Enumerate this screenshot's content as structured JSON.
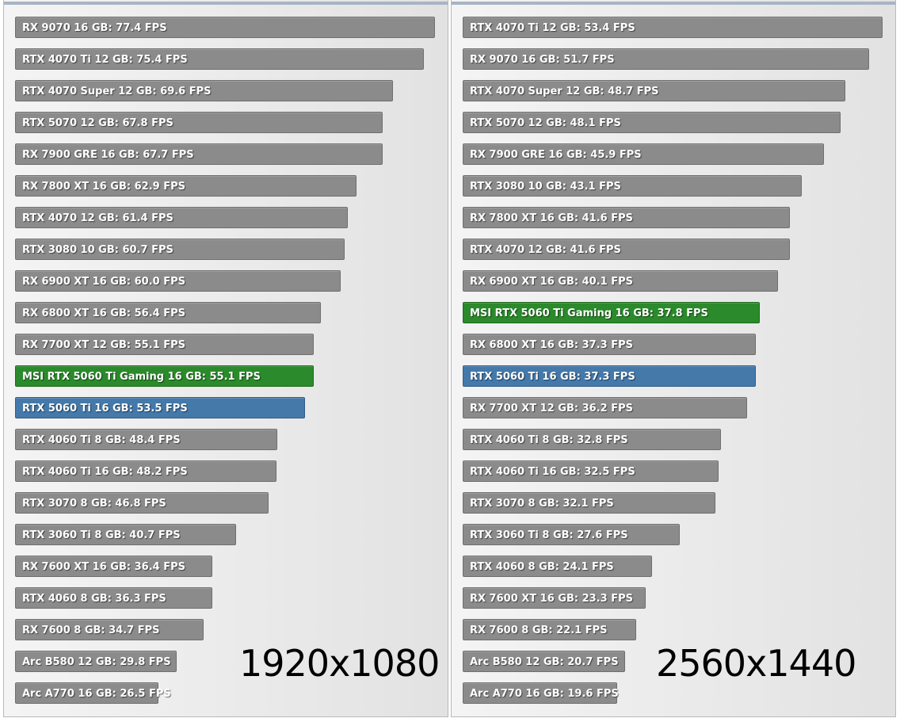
{
  "colors": {
    "default_bar": "#8b8b8b",
    "default_border": "#6f6f6f",
    "highlight_green": "#2b8a2b",
    "highlight_green_border": "#1e6b1e",
    "highlight_blue": "#4479aa",
    "highlight_blue_border": "#2f5d8a"
  },
  "chart_data": [
    {
      "type": "bar",
      "orientation": "horizontal",
      "resolution_label": "1920x1080",
      "unit": "FPS",
      "xlim": [
        0,
        80
      ],
      "bars": [
        {
          "label": "RX 9070 16 GB: 77.4 FPS",
          "name": "RX 9070 16 GB",
          "value": 77.4,
          "highlight": "none"
        },
        {
          "label": "RTX 4070 Ti 12 GB: 75.4 FPS",
          "name": "RTX 4070 Ti 12 GB",
          "value": 75.4,
          "highlight": "none"
        },
        {
          "label": "RTX 4070 Super 12 GB: 69.6 FPS",
          "name": "RTX 4070 Super 12 GB",
          "value": 69.6,
          "highlight": "none"
        },
        {
          "label": "RTX 5070 12 GB: 67.8 FPS",
          "name": "RTX 5070 12 GB",
          "value": 67.8,
          "highlight": "none"
        },
        {
          "label": "RX 7900 GRE 16 GB: 67.7 FPS",
          "name": "RX 7900 GRE 16 GB",
          "value": 67.7,
          "highlight": "none"
        },
        {
          "label": "RX 7800 XT 16 GB: 62.9 FPS",
          "name": "RX 7800 XT 16 GB",
          "value": 62.9,
          "highlight": "none"
        },
        {
          "label": "RTX 4070 12 GB: 61.4 FPS",
          "name": "RTX 4070 12 GB",
          "value": 61.4,
          "highlight": "none"
        },
        {
          "label": "RTX 3080 10 GB: 60.7 FPS",
          "name": "RTX 3080 10 GB",
          "value": 60.7,
          "highlight": "none"
        },
        {
          "label": "RX 6900 XT 16 GB: 60.0 FPS",
          "name": "RX 6900 XT 16 GB",
          "value": 60.0,
          "highlight": "none"
        },
        {
          "label": "RX 6800 XT 16 GB: 56.4 FPS",
          "name": "RX 6800 XT 16 GB",
          "value": 56.4,
          "highlight": "none"
        },
        {
          "label": "RX 7700 XT 12 GB: 55.1 FPS",
          "name": "RX 7700 XT 12 GB",
          "value": 55.1,
          "highlight": "none"
        },
        {
          "label": "MSI RTX 5060 Ti Gaming 16 GB: 55.1 FPS",
          "name": "MSI RTX 5060 Ti Gaming 16 GB",
          "value": 55.1,
          "highlight": "green"
        },
        {
          "label": "RTX 5060 Ti 16 GB: 53.5 FPS",
          "name": "RTX 5060 Ti 16 GB",
          "value": 53.5,
          "highlight": "blue"
        },
        {
          "label": "RTX 4060 Ti 8 GB: 48.4 FPS",
          "name": "RTX 4060 Ti 8 GB",
          "value": 48.4,
          "highlight": "none"
        },
        {
          "label": "RTX 4060 Ti 16 GB: 48.2 FPS",
          "name": "RTX 4060 Ti 16 GB",
          "value": 48.2,
          "highlight": "none"
        },
        {
          "label": "RTX 3070 8 GB: 46.8 FPS",
          "name": "RTX 3070 8 GB",
          "value": 46.8,
          "highlight": "none"
        },
        {
          "label": "RTX 3060 Ti 8 GB: 40.7 FPS",
          "name": "RTX 3060 Ti 8 GB",
          "value": 40.7,
          "highlight": "none"
        },
        {
          "label": "RX 7600 XT 16 GB: 36.4 FPS",
          "name": "RX 7600 XT 16 GB",
          "value": 36.4,
          "highlight": "none"
        },
        {
          "label": "RTX 4060 8 GB: 36.3 FPS",
          "name": "RTX 4060 8 GB",
          "value": 36.3,
          "highlight": "none"
        },
        {
          "label": "RX 7600 8 GB: 34.7 FPS",
          "name": "RX 7600 8 GB",
          "value": 34.7,
          "highlight": "none"
        },
        {
          "label": "Arc B580 12 GB: 29.8 FPS",
          "name": "Arc B580 12 GB",
          "value": 29.8,
          "highlight": "none"
        },
        {
          "label": "Arc A770 16 GB: 26.5 FPS",
          "name": "Arc A770 16 GB",
          "value": 26.5,
          "highlight": "none"
        }
      ]
    },
    {
      "type": "bar",
      "orientation": "horizontal",
      "resolution_label": "2560x1440",
      "unit": "FPS",
      "xlim": [
        0,
        55
      ],
      "bars": [
        {
          "label": "RTX 4070 Ti 12 GB: 53.4 FPS",
          "name": "RTX 4070 Ti 12 GB",
          "value": 53.4,
          "highlight": "none"
        },
        {
          "label": "RX 9070 16 GB: 51.7 FPS",
          "name": "RX 9070 16 GB",
          "value": 51.7,
          "highlight": "none"
        },
        {
          "label": "RTX 4070 Super 12 GB: 48.7 FPS",
          "name": "RTX 4070 Super 12 GB",
          "value": 48.7,
          "highlight": "none"
        },
        {
          "label": "RTX 5070 12 GB: 48.1 FPS",
          "name": "RTX 5070 12 GB",
          "value": 48.1,
          "highlight": "none"
        },
        {
          "label": "RX 7900 GRE 16 GB: 45.9 FPS",
          "name": "RX 7900 GRE 16 GB",
          "value": 45.9,
          "highlight": "none"
        },
        {
          "label": "RTX 3080 10 GB: 43.1 FPS",
          "name": "RTX 3080 10 GB",
          "value": 43.1,
          "highlight": "none"
        },
        {
          "label": "RX 7800 XT 16 GB: 41.6 FPS",
          "name": "RX 7800 XT 16 GB",
          "value": 41.6,
          "highlight": "none"
        },
        {
          "label": "RTX 4070 12 GB: 41.6 FPS",
          "name": "RTX 4070 12 GB",
          "value": 41.6,
          "highlight": "none"
        },
        {
          "label": "RX 6900 XT 16 GB: 40.1 FPS",
          "name": "RX 6900 XT 16 GB",
          "value": 40.1,
          "highlight": "none"
        },
        {
          "label": "MSI RTX 5060 Ti Gaming 16 GB: 37.8 FPS",
          "name": "MSI RTX 5060 Ti Gaming 16 GB",
          "value": 37.8,
          "highlight": "green"
        },
        {
          "label": "RX 6800 XT 16 GB: 37.3 FPS",
          "name": "RX 6800 XT 16 GB",
          "value": 37.3,
          "highlight": "none"
        },
        {
          "label": "RTX 5060 Ti 16 GB: 37.3 FPS",
          "name": "RTX 5060 Ti 16 GB",
          "value": 37.3,
          "highlight": "blue"
        },
        {
          "label": "RX 7700 XT 12 GB: 36.2 FPS",
          "name": "RX 7700 XT 12 GB",
          "value": 36.2,
          "highlight": "none"
        },
        {
          "label": "RTX 4060 Ti 8 GB: 32.8 FPS",
          "name": "RTX 4060 Ti 8 GB",
          "value": 32.8,
          "highlight": "none"
        },
        {
          "label": "RTX 4060 Ti 16 GB: 32.5 FPS",
          "name": "RTX 4060 Ti 16 GB",
          "value": 32.5,
          "highlight": "none"
        },
        {
          "label": "RTX 3070 8 GB: 32.1 FPS",
          "name": "RTX 3070 8 GB",
          "value": 32.1,
          "highlight": "none"
        },
        {
          "label": "RTX 3060 Ti 8 GB: 27.6 FPS",
          "name": "RTX 3060 Ti 8 GB",
          "value": 27.6,
          "highlight": "none"
        },
        {
          "label": "RTX 4060 8 GB: 24.1 FPS",
          "name": "RTX 4060 8 GB",
          "value": 24.1,
          "highlight": "none"
        },
        {
          "label": "RX 7600 XT 16 GB: 23.3 FPS",
          "name": "RX 7600 XT 16 GB",
          "value": 23.3,
          "highlight": "none"
        },
        {
          "label": "RX 7600 8 GB: 22.1 FPS",
          "name": "RX 7600 8 GB",
          "value": 22.1,
          "highlight": "none"
        },
        {
          "label": "Arc B580 12 GB: 20.7 FPS",
          "name": "Arc B580 12 GB",
          "value": 20.7,
          "highlight": "none"
        },
        {
          "label": "Arc A770 16 GB: 19.6 FPS",
          "name": "Arc A770 16 GB",
          "value": 19.6,
          "highlight": "none"
        }
      ]
    }
  ]
}
